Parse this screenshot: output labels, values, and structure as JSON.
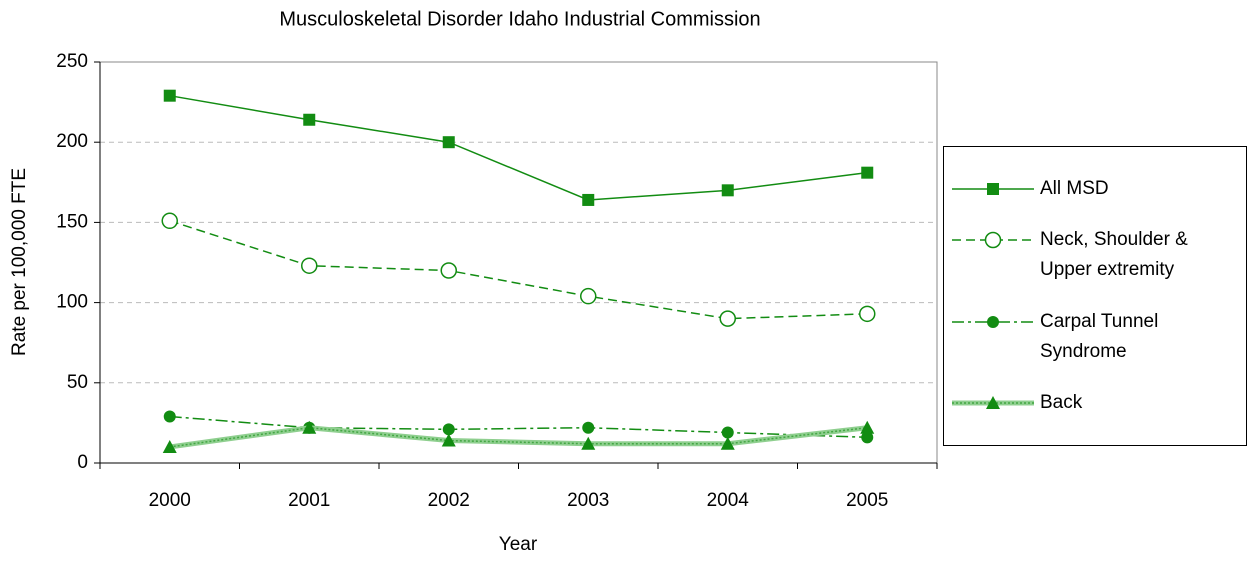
{
  "chart_data": {
    "type": "line",
    "title": "Musculoskeletal Disorder Idaho Industrial Commission",
    "x_label": "Year",
    "y_label": "Rate per 100,000 FTE",
    "categories": [
      "2000",
      "2001",
      "2002",
      "2003",
      "2004",
      "2005"
    ],
    "series": [
      {
        "name": "All MSD",
        "color": "#128c12",
        "dash": "solid",
        "marker": "square",
        "values": [
          229,
          214,
          200,
          164,
          170,
          181
        ]
      },
      {
        "name": "Neck, Shoulder & Upper extremity",
        "color": "#128c12",
        "dash": "dashed",
        "marker": "open-circle",
        "values": [
          151,
          123,
          120,
          104,
          90,
          93
        ]
      },
      {
        "name": "Carpal Tunnel Syndrome",
        "color": "#128c12",
        "dash": "dash-dot",
        "marker": "circle",
        "values": [
          29,
          22,
          21,
          22,
          19,
          16
        ]
      },
      {
        "name": "Back",
        "color": "#128c12",
        "dash": "hatched",
        "marker": "triangle",
        "values": [
          10,
          22,
          14,
          12,
          12,
          22
        ]
      }
    ],
    "ylim": [
      0,
      250
    ],
    "yticks": [
      0,
      50,
      100,
      150,
      200,
      250
    ],
    "grid": true
  }
}
